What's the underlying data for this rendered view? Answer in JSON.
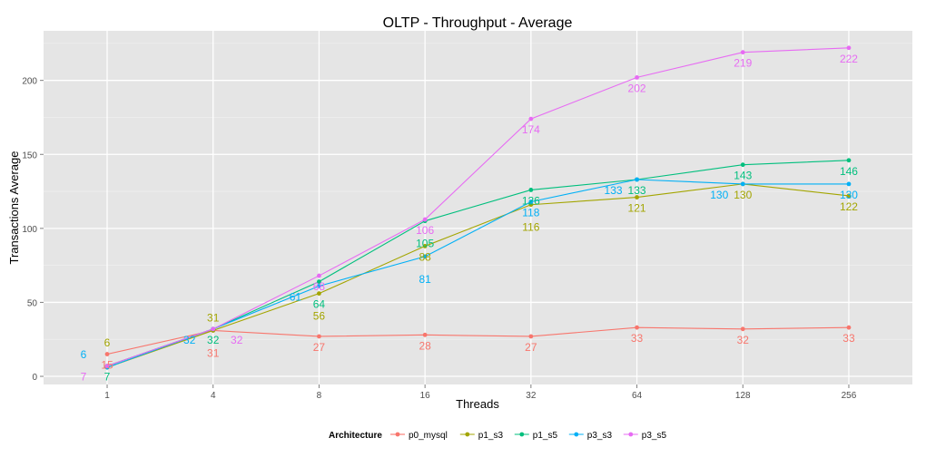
{
  "chart_data": {
    "type": "line",
    "title": "OLTP  - Throughput - Average",
    "xlabel": "Threads",
    "ylabel": "Transactions  Average",
    "categories": [
      "1",
      "4",
      "8",
      "16",
      "32",
      "64",
      "128",
      "256"
    ],
    "yticks": [
      0,
      50,
      100,
      150,
      200
    ],
    "ylim": [
      -5.5,
      233.5
    ],
    "grid": true,
    "legend": {
      "title": "Architecture",
      "placement": "bottom"
    },
    "series": [
      {
        "name": "p0_mysql",
        "color": "#F8766D",
        "values": [
          15,
          31,
          27,
          28,
          27,
          33,
          32,
          33
        ]
      },
      {
        "name": "p1_s3",
        "color": "#A3A500",
        "values": [
          6,
          31,
          56,
          88,
          116,
          121,
          130,
          122
        ]
      },
      {
        "name": "p1_s5",
        "color": "#00BF7D",
        "values": [
          7,
          32,
          64,
          105,
          126,
          133,
          143,
          146
        ]
      },
      {
        "name": "p3_s3",
        "color": "#00B0F6",
        "values": [
          6,
          32,
          61,
          81,
          118,
          133,
          130,
          130
        ]
      },
      {
        "name": "p3_s5",
        "color": "#E76BF3",
        "values": [
          7,
          32,
          68,
          106,
          174,
          202,
          219,
          222
        ]
      }
    ]
  }
}
